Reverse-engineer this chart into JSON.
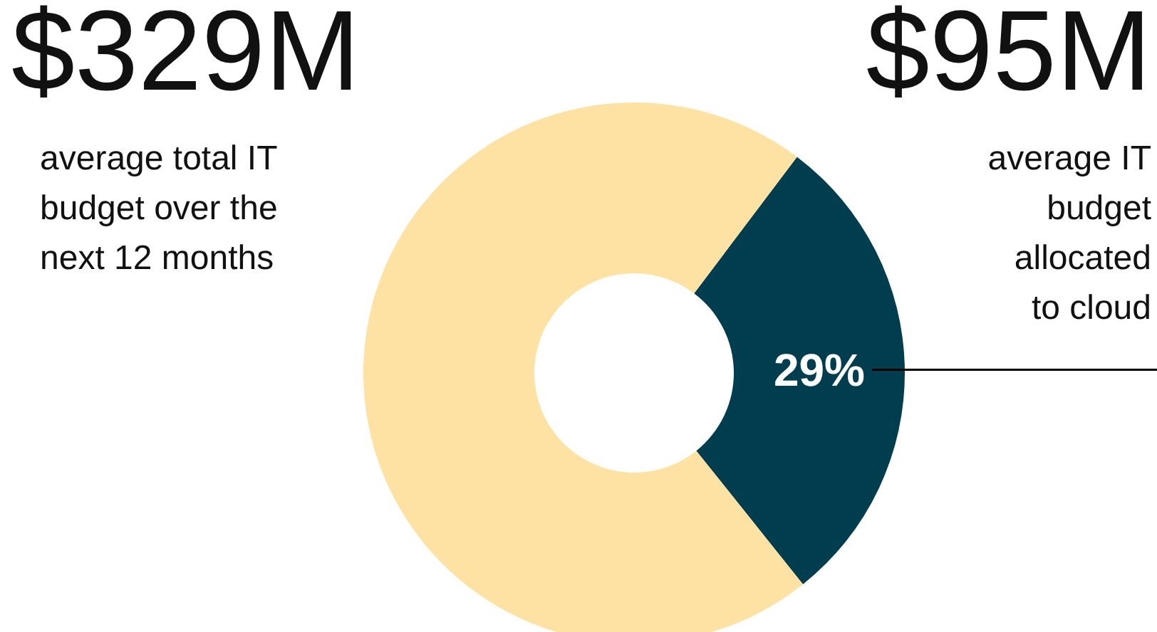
{
  "chart_data": {
    "type": "donut",
    "categories": [
      null,
      null
    ],
    "values": [
      29,
      71
    ],
    "colors": [
      "#003d4f",
      "#fde2a4"
    ],
    "value_labels": [
      "29%",
      null
    ],
    "annotations": [
      "$329M",
      "average total IT budget over the next 12 months",
      "$95M",
      "average IT budget allocated to cloud"
    ]
  }
}
